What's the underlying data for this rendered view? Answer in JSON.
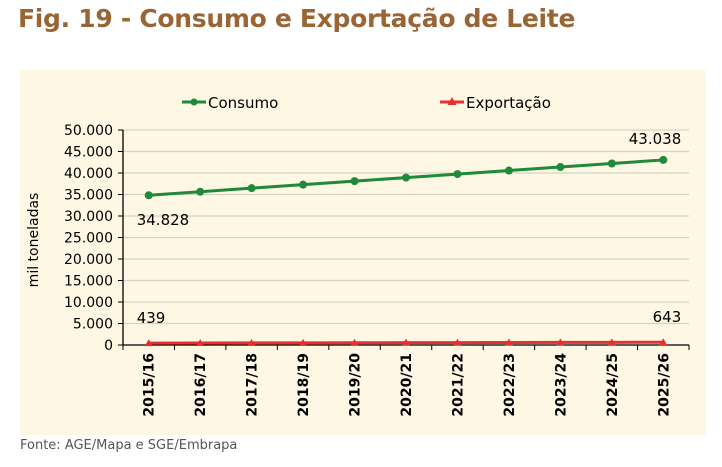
{
  "figure": {
    "title": "Fig. 19 - Consumo e Exportação de Leite",
    "source": "Fonte: AGE/Mapa e SGE/Embrapa"
  },
  "colors": {
    "title": "#9a6535",
    "panel_background": "#fdf7e4",
    "consumo": "#1e8a3a",
    "exportacao": "#e63030",
    "gridline": "#d9d3c4"
  },
  "chart_data": {
    "type": "line",
    "title": "Fig. 19 - Consumo e Exportação de Leite",
    "xlabel": "",
    "ylabel": "mil toneladas",
    "ylim": [
      0,
      50000
    ],
    "yticks": [
      0,
      5000,
      10000,
      15000,
      20000,
      25000,
      30000,
      35000,
      40000,
      45000,
      50000
    ],
    "ytick_labels": [
      "0",
      "5.000",
      "10.000",
      "15.000",
      "20.000",
      "25.000",
      "30.000",
      "35.000",
      "40.000",
      "45.000",
      "50.000"
    ],
    "grid": true,
    "legend_position": "top",
    "categories": [
      "2015/16",
      "2016/17",
      "2017/18",
      "2018/19",
      "2019/20",
      "2020/21",
      "2021/22",
      "2022/23",
      "2023/24",
      "2024/25",
      "2025/26"
    ],
    "series": [
      {
        "name": "Consumo",
        "marker": "circle",
        "values": [
          34828,
          35650,
          36470,
          37290,
          38110,
          38930,
          39750,
          40570,
          41390,
          42210,
          43038
        ]
      },
      {
        "name": "Exportação",
        "marker": "triangle",
        "values": [
          439,
          459,
          480,
          500,
          521,
          541,
          561,
          582,
          602,
          623,
          643
        ]
      }
    ],
    "annotations": [
      {
        "series": "Consumo",
        "category": "2015/16",
        "text": "34.828"
      },
      {
        "series": "Consumo",
        "category": "2025/26",
        "text": "43.038"
      },
      {
        "series": "Exportação",
        "category": "2015/16",
        "text": "439"
      },
      {
        "series": "Exportação",
        "category": "2025/26",
        "text": "643"
      }
    ]
  }
}
